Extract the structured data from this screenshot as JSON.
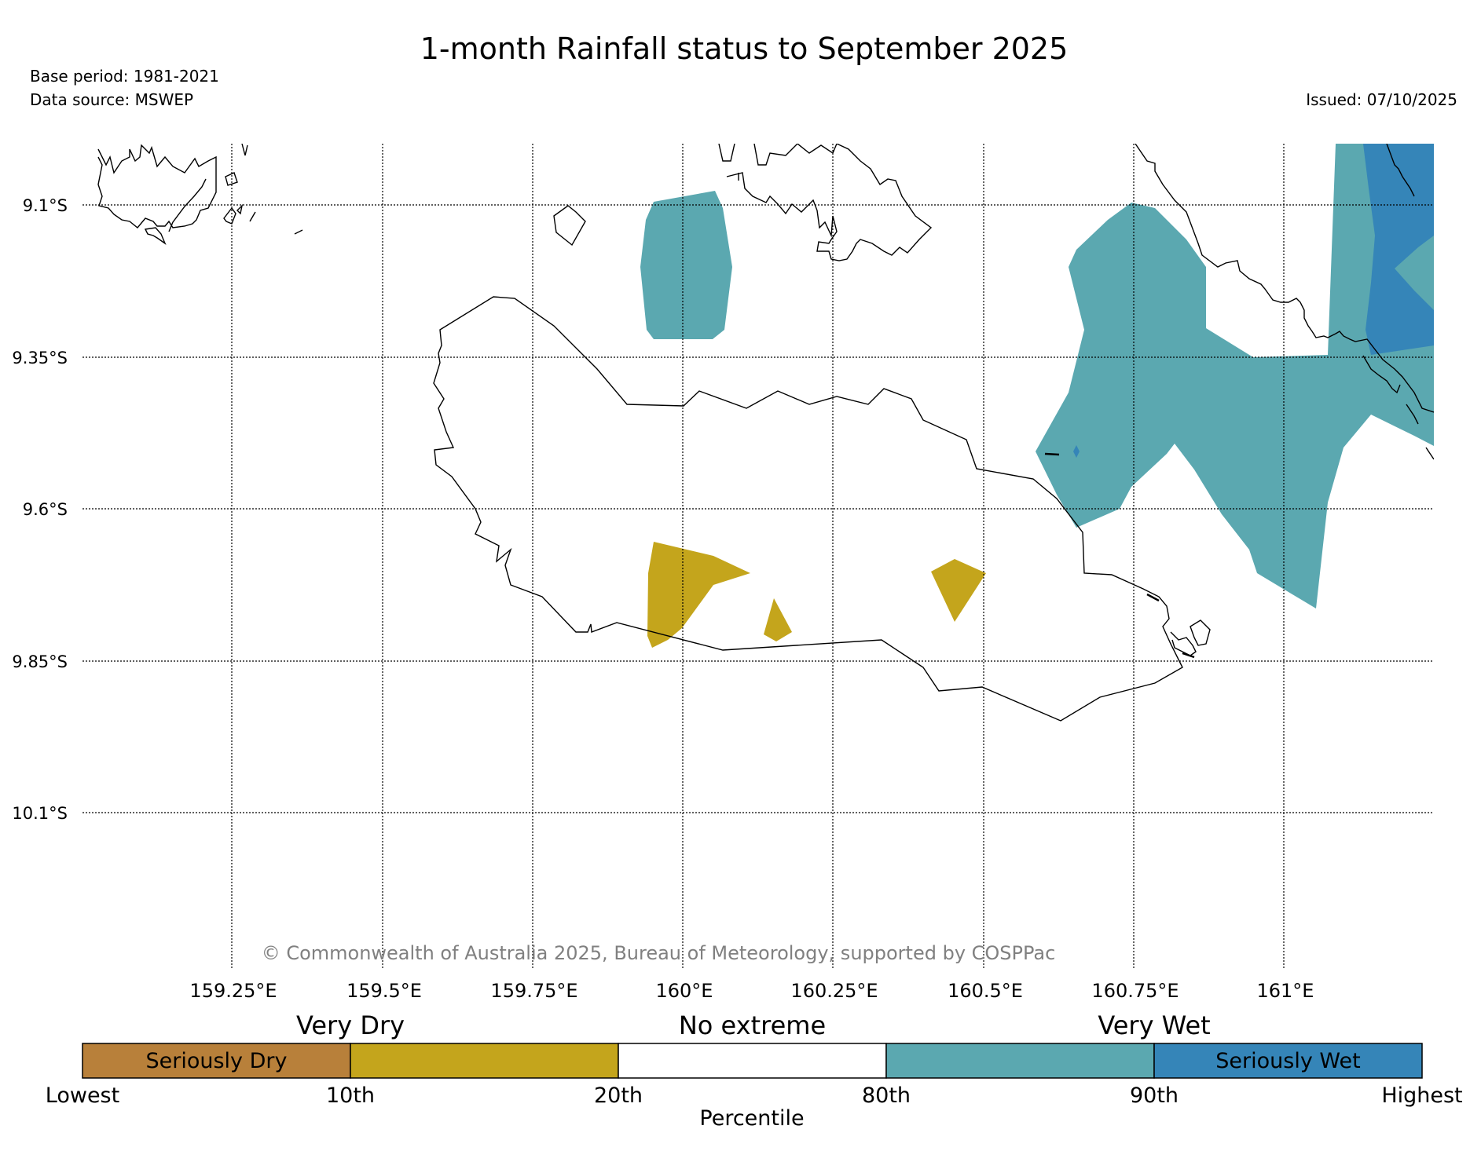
{
  "header": {
    "title": "1-month Rainfall status to September 2025",
    "base_period": "Base period: 1981-2021",
    "data_source": "Data source: MSWEP",
    "issued": "Issued: 07/10/2025"
  },
  "map": {
    "lat_labels": [
      "9.1°S",
      "9.35°S",
      "9.6°S",
      "9.85°S",
      "10.1°S"
    ],
    "lon_labels": [
      "159.25°E",
      "159.5°E",
      "159.75°E",
      "160°E",
      "160.25°E",
      "160.5°E",
      "160.75°E",
      "161°E"
    ],
    "copyright": "© Commonwealth of Australia 2025, Bureau of Meteorology, supported by COSPPac"
  },
  "legend": {
    "group_labels": [
      "Very Dry",
      "No extreme",
      "Very Wet"
    ],
    "segments": [
      {
        "label": "Seriously Dry",
        "color": "#b8803a"
      },
      {
        "label": "",
        "color": "#c4a51c"
      },
      {
        "label": "",
        "color": "#ffffff"
      },
      {
        "label": "",
        "color": "#5ba8b0"
      },
      {
        "label": "Seriously Wet",
        "color": "#3585b8"
      }
    ],
    "tick_labels": [
      "Lowest",
      "10th",
      "20th",
      "80th",
      "90th",
      "Highest"
    ],
    "axis_label": "Percentile"
  },
  "colors": {
    "very_dry": "#c4a51c",
    "very_wet": "#5ba8b0",
    "seriously_wet": "#3585b8",
    "seriously_dry": "#b8803a",
    "copyright_text": "#808080"
  }
}
